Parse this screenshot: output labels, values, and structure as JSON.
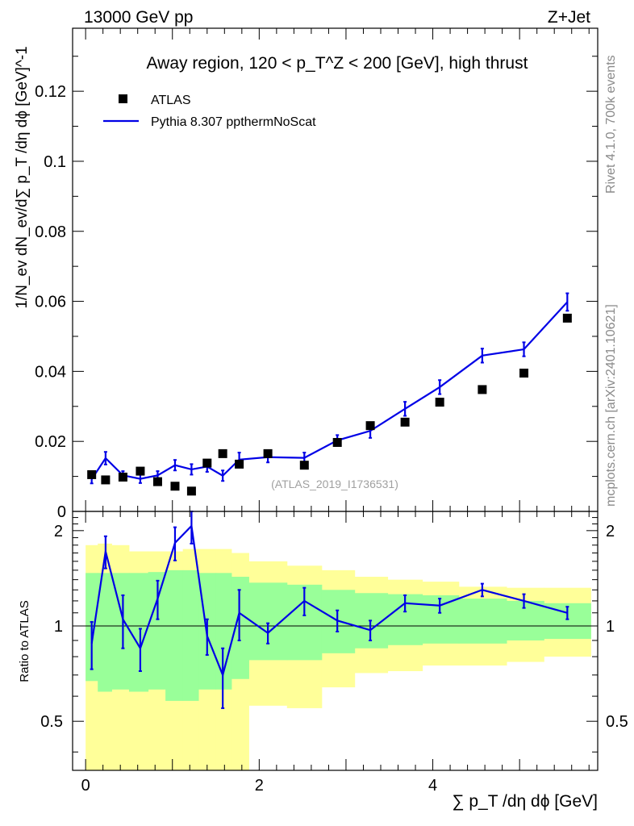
{
  "header": {
    "energy_label": "13000 GeV pp",
    "process_label": "Z+Jet"
  },
  "side_labels": {
    "rivet": "Rivet 4.1.0,  700k events",
    "mcplots": "mcplots.cern.ch [arXiv:2401.10621]"
  },
  "chart_data": {
    "type": "scatter",
    "title": "Away region, 120 < p_T^Z < 200 [GeV], high thrust",
    "analysis_id": "(ATLAS_2019_I1736531)",
    "xlabel": "∑ p_T /dη dϕ [GeV]",
    "ylabel": "1/N_ev dN_ev/d∑ p_T /dη dϕ [GeV]^-1",
    "ratio_ylabel": "Ratio to ATLAS",
    "xlim": [
      -0.15,
      5.9
    ],
    "ylim": [
      0,
      0.138
    ],
    "ratio_ylim": [
      0.35,
      2.3
    ],
    "x_ticks": [
      "0",
      "2",
      "4"
    ],
    "y_ticks": [
      "0",
      "0.02",
      "0.04",
      "0.06",
      "0.08",
      "0.1",
      "0.12"
    ],
    "ratio_ticks": [
      "0.5",
      "1",
      "2"
    ],
    "legend": {
      "data_label": "ATLAS",
      "mc_label": "Pythia 8.307 ppthermNoScat",
      "placement": "top-left"
    },
    "x_edges": [
      0.0,
      0.14,
      0.3,
      0.5,
      0.72,
      0.92,
      1.12,
      1.3,
      1.5,
      1.68,
      1.88,
      2.32,
      2.72,
      3.1,
      3.48,
      3.88,
      4.3,
      4.85,
      5.28,
      5.82
    ],
    "x": [
      0.07,
      0.23,
      0.43,
      0.63,
      0.83,
      1.03,
      1.22,
      1.4,
      1.58,
      1.77,
      2.1,
      2.52,
      2.9,
      3.28,
      3.68,
      4.08,
      4.57,
      5.05,
      5.55
    ],
    "series": [
      {
        "name": "ATLAS",
        "values": [
          0.0105,
          0.009,
          0.0098,
          0.0115,
          0.0085,
          0.0072,
          0.0058,
          0.0138,
          0.0165,
          0.0135,
          0.0165,
          0.0132,
          0.0197,
          0.0245,
          0.0255,
          0.0312,
          0.0348,
          0.0395,
          0.0552
        ]
      },
      {
        "name": "Pythia 8.307 ppthermNoScat",
        "values": [
          0.0092,
          0.0152,
          0.0103,
          0.0093,
          0.0103,
          0.0132,
          0.012,
          0.0128,
          0.0102,
          0.0148,
          0.0155,
          0.0153,
          0.0203,
          0.023,
          0.0293,
          0.0355,
          0.0445,
          0.0463,
          0.0598
        ],
        "errors": [
          0.0012,
          0.0018,
          0.0012,
          0.0012,
          0.0012,
          0.0015,
          0.0015,
          0.0015,
          0.0015,
          0.002,
          0.0015,
          0.0015,
          0.0015,
          0.002,
          0.002,
          0.002,
          0.002,
          0.002,
          0.0025
        ]
      }
    ],
    "ratio": {
      "values": [
        0.88,
        1.72,
        1.05,
        0.85,
        1.22,
        1.83,
        2.07,
        0.93,
        0.7,
        1.1,
        0.95,
        1.2,
        1.04,
        0.97,
        1.18,
        1.16,
        1.3,
        1.2,
        1.1
      ],
      "errors": [
        0.15,
        0.2,
        0.2,
        0.13,
        0.17,
        0.22,
        0.25,
        0.12,
        0.15,
        0.2,
        0.07,
        0.12,
        0.08,
        0.07,
        0.07,
        0.06,
        0.06,
        0.06,
        0.05
      ],
      "band_green": [
        [
          0.67,
          1.47
        ],
        [
          0.62,
          1.47
        ],
        [
          0.63,
          1.47
        ],
        [
          0.62,
          1.47
        ],
        [
          0.63,
          1.48
        ],
        [
          0.58,
          1.5
        ],
        [
          0.58,
          1.5
        ],
        [
          0.63,
          1.47
        ],
        [
          0.63,
          1.47
        ],
        [
          0.68,
          1.43
        ],
        [
          0.78,
          1.37
        ],
        [
          0.78,
          1.35
        ],
        [
          0.82,
          1.3
        ],
        [
          0.85,
          1.27
        ],
        [
          0.87,
          1.26
        ],
        [
          0.88,
          1.25
        ],
        [
          0.88,
          1.22
        ],
        [
          0.9,
          1.2
        ],
        [
          0.91,
          1.18
        ]
      ],
      "band_yellow": [
        [
          0.35,
          1.8
        ],
        [
          0.35,
          1.82
        ],
        [
          0.35,
          1.8
        ],
        [
          0.35,
          1.72
        ],
        [
          0.35,
          1.72
        ],
        [
          0.35,
          1.72
        ],
        [
          0.35,
          1.75
        ],
        [
          0.35,
          1.75
        ],
        [
          0.35,
          1.75
        ],
        [
          0.35,
          1.7
        ],
        [
          0.56,
          1.6
        ],
        [
          0.55,
          1.55
        ],
        [
          0.64,
          1.5
        ],
        [
          0.71,
          1.43
        ],
        [
          0.72,
          1.4
        ],
        [
          0.75,
          1.38
        ],
        [
          0.75,
          1.33
        ],
        [
          0.77,
          1.32
        ],
        [
          0.8,
          1.32
        ]
      ]
    }
  }
}
